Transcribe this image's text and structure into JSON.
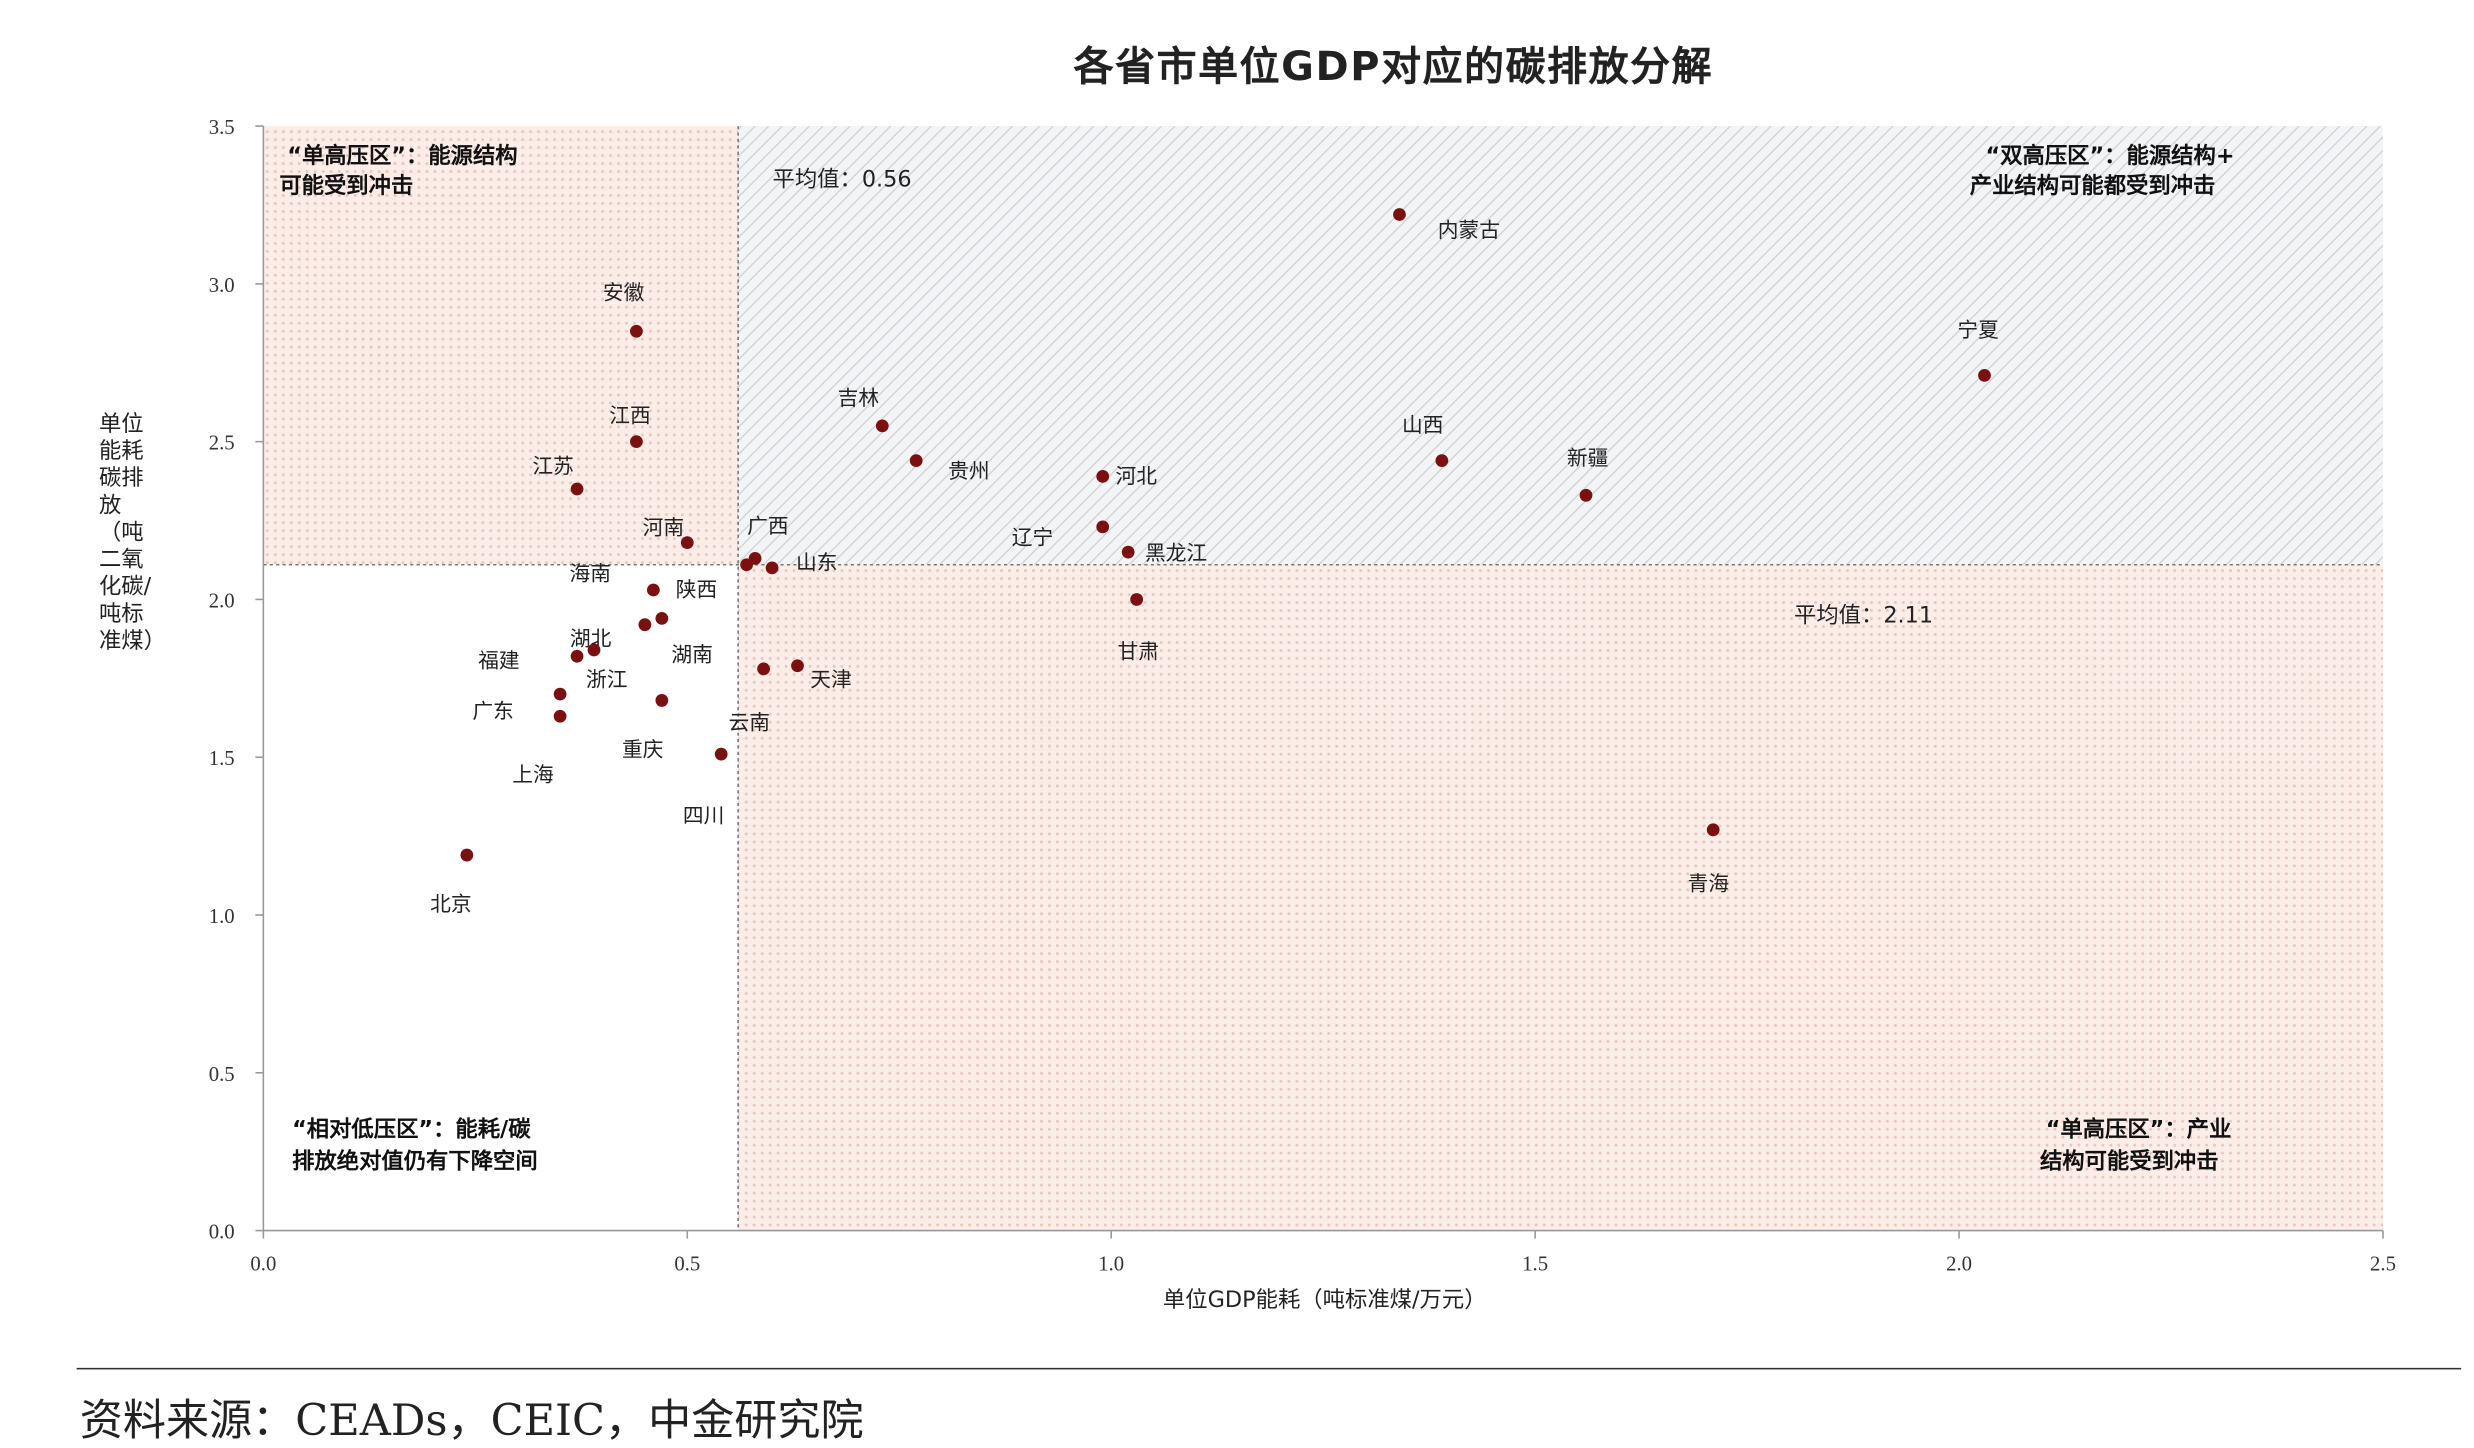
{
  "chart_data": {
    "type": "scatter",
    "title": "各省市单位GDP对应的碳排放分解",
    "xlabel": "单位GDP能耗（吨标准煤/万元）",
    "ylabel": "单位能耗碳排放（吨二氧化碳/吨标准煤）",
    "xlim": [
      0,
      2.5
    ],
    "ylim": [
      0,
      3.5
    ],
    "xticks": [
      "0.0",
      "0.5",
      "1.0",
      "1.5",
      "2.0",
      "2.5"
    ],
    "yticks": [
      "0.0",
      "0.5",
      "1.0",
      "1.5",
      "2.0",
      "2.5",
      "3.0",
      "3.5"
    ],
    "grid": false,
    "point_color": "#7a1010",
    "mean_x": 0.56,
    "mean_y": 2.11,
    "mean_x_label": "平均值：0.56",
    "mean_y_label": "平均值：2.11",
    "quadrant_colors": {
      "pink_dots": "#f6e3dc",
      "grey_hatch": "#e4e6ea"
    },
    "quadrant_notes": {
      "top_left": [
        "“单高压区”：能源结构",
        "可能受到冲击"
      ],
      "top_right": [
        "“双高压区”：能源结构+",
        "产业结构可能都受到冲击"
      ],
      "bottom_left": [
        "“相对低压区”：能耗/碳",
        "排放绝对值仍有下降空间"
      ],
      "bottom_right": [
        "“单高压区”：产业",
        "结构可能受到冲击"
      ]
    },
    "points": [
      {
        "name": "内蒙古",
        "x": 1.34,
        "y": 3.22
      },
      {
        "name": "宁夏",
        "x": 2.03,
        "y": 2.71
      },
      {
        "name": "安徽",
        "x": 0.44,
        "y": 2.85
      },
      {
        "name": "江西",
        "x": 0.44,
        "y": 2.5
      },
      {
        "name": "江苏",
        "x": 0.37,
        "y": 2.35
      },
      {
        "name": "吉林",
        "x": 0.73,
        "y": 2.55
      },
      {
        "name": "贵州",
        "x": 0.77,
        "y": 2.44
      },
      {
        "name": "河北",
        "x": 0.99,
        "y": 2.39
      },
      {
        "name": "山西",
        "x": 1.39,
        "y": 2.44
      },
      {
        "name": "新疆",
        "x": 1.56,
        "y": 2.33
      },
      {
        "name": "辽宁",
        "x": 0.99,
        "y": 2.23
      },
      {
        "name": "黑龙江",
        "x": 1.02,
        "y": 2.15
      },
      {
        "name": "河南",
        "x": 0.5,
        "y": 2.18
      },
      {
        "name": "广西",
        "x": 0.58,
        "y": 2.13
      },
      {
        "name": "海南",
        "x": 0.57,
        "y": 2.11
      },
      {
        "name": "山东",
        "x": 0.6,
        "y": 2.1
      },
      {
        "name": "陕西",
        "x": 0.46,
        "y": 2.03
      },
      {
        "name": "甘肃",
        "x": 1.03,
        "y": 2.0
      },
      {
        "name": "湖南",
        "x": 0.47,
        "y": 1.94
      },
      {
        "name": "湖北",
        "x": 0.45,
        "y": 1.92
      },
      {
        "name": "浙江",
        "x": 0.39,
        "y": 1.84
      },
      {
        "name": "福建",
        "x": 0.37,
        "y": 1.82
      },
      {
        "name": "广东",
        "x": 0.35,
        "y": 1.7
      },
      {
        "name": "上海",
        "x": 0.35,
        "y": 1.63
      },
      {
        "name": "重庆",
        "x": 0.47,
        "y": 1.68
      },
      {
        "name": "四川",
        "x": 0.54,
        "y": 1.51
      },
      {
        "name": "云南",
        "x": 0.59,
        "y": 1.78
      },
      {
        "name": "天津",
        "x": 0.63,
        "y": 1.79
      },
      {
        "name": "北京",
        "x": 0.24,
        "y": 1.19
      },
      {
        "name": "青海",
        "x": 1.71,
        "y": 1.27
      }
    ]
  },
  "footer": {
    "source": "资料来源：CEADs，CEIC，中金研究院"
  }
}
